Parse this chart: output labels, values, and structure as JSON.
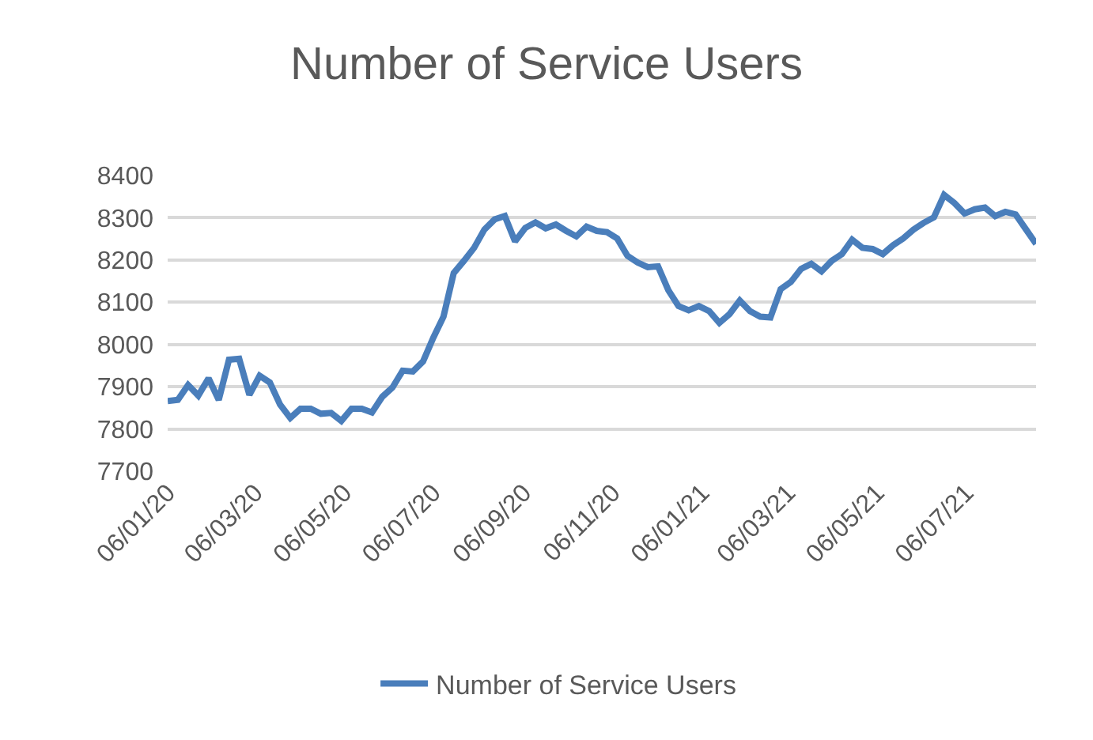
{
  "chart_data": {
    "type": "line",
    "title": "Number of Service Users",
    "x": [
      "2020-01-06",
      "2020-01-13",
      "2020-01-20",
      "2020-01-27",
      "2020-02-03",
      "2020-02-10",
      "2020-02-17",
      "2020-02-24",
      "2020-03-02",
      "2020-03-09",
      "2020-03-16",
      "2020-03-23",
      "2020-03-30",
      "2020-04-06",
      "2020-04-13",
      "2020-04-20",
      "2020-04-27",
      "2020-05-04",
      "2020-05-11",
      "2020-05-18",
      "2020-05-25",
      "2020-06-01",
      "2020-06-08",
      "2020-06-15",
      "2020-06-22",
      "2020-06-29",
      "2020-07-06",
      "2020-07-13",
      "2020-07-20",
      "2020-07-27",
      "2020-08-03",
      "2020-08-10",
      "2020-08-17",
      "2020-08-24",
      "2020-08-31",
      "2020-09-07",
      "2020-09-14",
      "2020-09-21",
      "2020-09-28",
      "2020-10-05",
      "2020-10-12",
      "2020-10-19",
      "2020-10-26",
      "2020-11-02",
      "2020-11-09",
      "2020-11-16",
      "2020-11-23",
      "2020-11-30",
      "2020-12-07",
      "2020-12-14",
      "2020-12-21",
      "2020-12-28",
      "2021-01-04",
      "2021-01-11",
      "2021-01-18",
      "2021-01-25",
      "2021-02-01",
      "2021-02-08",
      "2021-02-15",
      "2021-02-22",
      "2021-03-01",
      "2021-03-08",
      "2021-03-15",
      "2021-03-22",
      "2021-03-29",
      "2021-04-05",
      "2021-04-12",
      "2021-04-19",
      "2021-04-26",
      "2021-05-03",
      "2021-05-10",
      "2021-05-17",
      "2021-05-24",
      "2021-05-31",
      "2021-06-07",
      "2021-06-14",
      "2021-06-21",
      "2021-06-28",
      "2021-07-05",
      "2021-07-12",
      "2021-07-19",
      "2021-07-26",
      "2021-08-02",
      "2021-08-09",
      "2021-08-16",
      "2021-08-23"
    ],
    "series": [
      {
        "name": "Number of Service Users",
        "color": "#4a7ebb",
        "values": [
          7866,
          7869,
          7904,
          7879,
          7920,
          7869,
          7964,
          7966,
          7881,
          7926,
          7910,
          7858,
          7826,
          7848,
          7848,
          7836,
          7838,
          7819,
          7848,
          7848,
          7839,
          7876,
          7898,
          7938,
          7936,
          7960,
          8016,
          8066,
          8169,
          8198,
          8229,
          8272,
          8296,
          8304,
          8244,
          8276,
          8289,
          8275,
          8284,
          8269,
          8256,
          8279,
          8269,
          8266,
          8251,
          8210,
          8194,
          8183,
          8185,
          8129,
          8091,
          8081,
          8091,
          8079,
          8051,
          8072,
          8104,
          8079,
          8066,
          8064,
          8131,
          8148,
          8179,
          8191,
          8173,
          8198,
          8214,
          8248,
          8229,
          8226,
          8214,
          8235,
          8251,
          8272,
          8288,
          8301,
          8354,
          8335,
          8310,
          8320,
          8324,
          8304,
          8314,
          8308,
          8273,
          8238
        ]
      }
    ],
    "xlim": [
      "2020-01-06",
      "2021-08-23"
    ],
    "xticks": [
      {
        "value": "2020-01-06",
        "label": "06/01/20"
      },
      {
        "value": "2020-03-06",
        "label": "06/03/20"
      },
      {
        "value": "2020-05-06",
        "label": "06/05/20"
      },
      {
        "value": "2020-07-06",
        "label": "06/07/20"
      },
      {
        "value": "2020-09-06",
        "label": "06/09/20"
      },
      {
        "value": "2020-11-06",
        "label": "06/11/20"
      },
      {
        "value": "2021-01-06",
        "label": "06/01/21"
      },
      {
        "value": "2021-03-06",
        "label": "06/03/21"
      },
      {
        "value": "2021-05-06",
        "label": "06/05/21"
      },
      {
        "value": "2021-07-06",
        "label": "06/07/21"
      }
    ],
    "ylim": [
      7700,
      8400
    ],
    "yticks": [
      7700,
      7800,
      7900,
      8000,
      8100,
      8200,
      8300,
      8400
    ],
    "grid": "y",
    "legend": "bottom",
    "marker": "none",
    "line_style": "solid"
  }
}
